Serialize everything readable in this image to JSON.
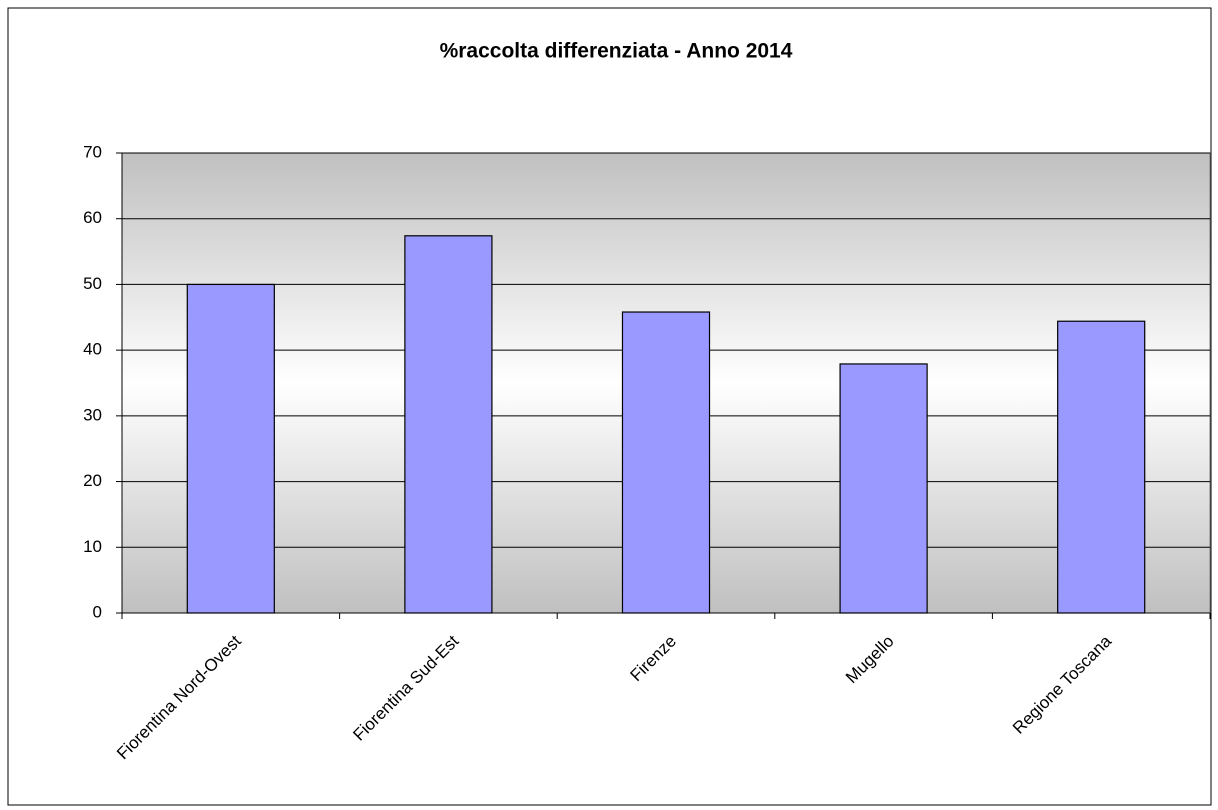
{
  "chart_data": {
    "type": "bar",
    "title": "%raccolta differenziata - Anno 2014",
    "categories": [
      "Fiorentina Nord-Ovest",
      "Fiorentina Sud-Est",
      "Firenze",
      "Mugello",
      "Regione Toscana"
    ],
    "values": [
      50,
      57.4,
      45.8,
      37.9,
      44.4
    ],
    "color": "#9999ff",
    "ylim": [
      0,
      70
    ],
    "yticks": [
      0,
      10,
      20,
      30,
      40,
      50,
      60,
      70
    ],
    "grid": true
  }
}
